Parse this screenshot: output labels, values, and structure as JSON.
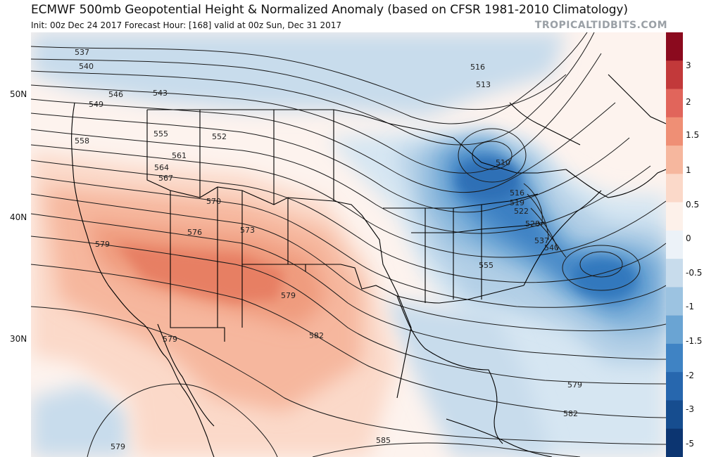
{
  "header": {
    "title": "ECMWF 500mb Geopotential Height & Normalized Anomaly (based on CFSR 1981-2010 Climatology)",
    "subtitle": "Init: 00z Dec 24 2017   Forecast Hour: [168]   valid at 00z Sun, Dec 31 2017",
    "watermark": "TROPICALTIDBITS.COM"
  },
  "latitude_labels": [
    "50N",
    "40N",
    "30N"
  ],
  "colorbar": {
    "labels": [
      "3",
      "2",
      "1.5",
      "1",
      "0.5",
      "0",
      "-0.5",
      "-1",
      "-1.5",
      "-2",
      "-3",
      "-5"
    ],
    "colors": [
      "#8b0a1e",
      "#c2393a",
      "#e1655b",
      "#ef8f75",
      "#f6b79e",
      "#fbd9c9",
      "#fdf1ea",
      "#ecf2f8",
      "#c8dcec",
      "#9cc3e1",
      "#6aa4d3",
      "#3f83c4",
      "#2767ae",
      "#164d8f",
      "#0c3571"
    ]
  },
  "contour_labels": [
    {
      "text": "537"
    },
    {
      "text": "540"
    },
    {
      "text": "543"
    },
    {
      "text": "546"
    },
    {
      "text": "549"
    },
    {
      "text": "558"
    },
    {
      "text": "555"
    },
    {
      "text": "552"
    },
    {
      "text": "561"
    },
    {
      "text": "564"
    },
    {
      "text": "567"
    },
    {
      "text": "570"
    },
    {
      "text": "576"
    },
    {
      "text": "573"
    },
    {
      "text": "579"
    },
    {
      "text": "579"
    },
    {
      "text": "582"
    },
    {
      "text": "579"
    },
    {
      "text": "579"
    },
    {
      "text": "585"
    },
    {
      "text": "516"
    },
    {
      "text": "513"
    },
    {
      "text": "510"
    },
    {
      "text": "516"
    },
    {
      "text": "519"
    },
    {
      "text": "522"
    },
    {
      "text": "528"
    },
    {
      "text": "537"
    },
    {
      "text": "540"
    },
    {
      "text": "555"
    },
    {
      "text": "579"
    },
    {
      "text": "582"
    }
  ]
}
